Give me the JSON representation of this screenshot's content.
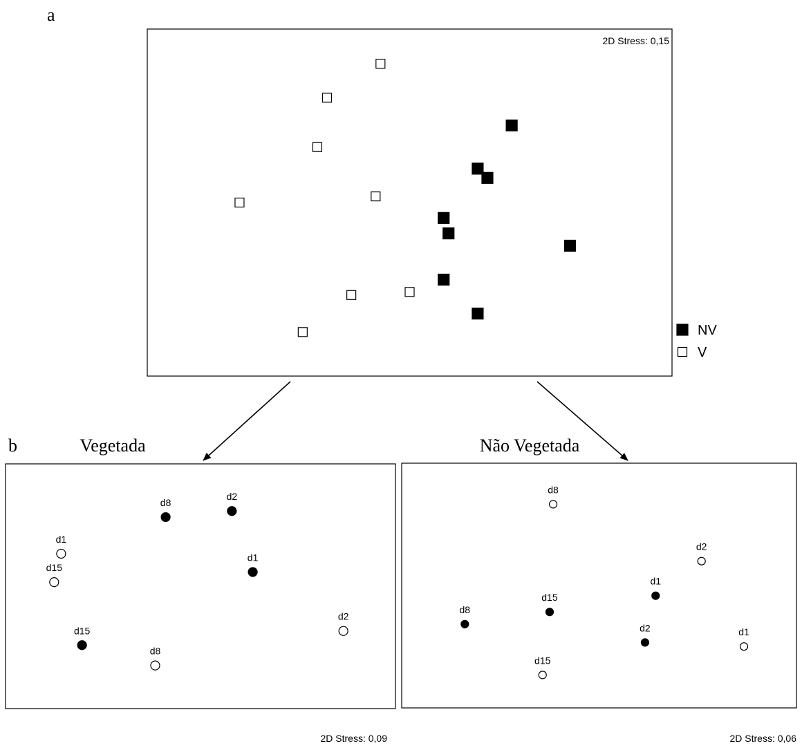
{
  "panel_labels": {
    "a": "a",
    "b": "b"
  },
  "chart_data": [
    {
      "type": "scatter",
      "panel": "a",
      "title": "",
      "stress": "2D Stress: 0,15",
      "legend_position": "right-bottom-outside",
      "legend": [
        {
          "label": "NV",
          "marker": "filled-square"
        },
        {
          "label": "V",
          "marker": "open-square"
        }
      ],
      "series": [
        {
          "name": "NV",
          "marker": "filled-square",
          "points": [
            {
              "x": 0.71,
              "y": 0.75
            },
            {
              "x": 0.64,
              "y": 0.61
            },
            {
              "x": 0.66,
              "y": 0.58
            },
            {
              "x": 0.57,
              "y": 0.45
            },
            {
              "x": 0.58,
              "y": 0.4
            },
            {
              "x": 0.83,
              "y": 0.36
            },
            {
              "x": 0.57,
              "y": 0.25
            },
            {
              "x": 0.64,
              "y": 0.14
            }
          ]
        },
        {
          "name": "V",
          "marker": "open-square",
          "points": [
            {
              "x": 0.44,
              "y": 0.95
            },
            {
              "x": 0.33,
              "y": 0.84
            },
            {
              "x": 0.31,
              "y": 0.68
            },
            {
              "x": 0.43,
              "y": 0.52
            },
            {
              "x": 0.15,
              "y": 0.5
            },
            {
              "x": 0.38,
              "y": 0.2
            },
            {
              "x": 0.5,
              "y": 0.21
            },
            {
              "x": 0.28,
              "y": 0.08
            }
          ]
        }
      ]
    },
    {
      "type": "scatter",
      "panel": "b-left",
      "title": "Vegetada",
      "stress": "2D Stress: 0,09",
      "series": [
        {
          "name": "",
          "marker": "filled-circle",
          "points": [
            {
              "x": 0.4,
              "y": 0.84,
              "label": "d8"
            },
            {
              "x": 0.59,
              "y": 0.87,
              "label": "d2"
            },
            {
              "x": 0.65,
              "y": 0.57,
              "label": "d1"
            },
            {
              "x": 0.16,
              "y": 0.21,
              "label": "d15"
            }
          ]
        },
        {
          "name": "",
          "marker": "open-circle",
          "points": [
            {
              "x": 0.1,
              "y": 0.66,
              "label": "d1"
            },
            {
              "x": 0.08,
              "y": 0.52,
              "label": "d15"
            },
            {
              "x": 0.91,
              "y": 0.28,
              "label": "d2"
            },
            {
              "x": 0.37,
              "y": 0.11,
              "label": "d8"
            }
          ]
        }
      ]
    },
    {
      "type": "scatter",
      "panel": "b-right",
      "title": "Não Vegetada",
      "stress": "2D Stress: 0,06",
      "series": [
        {
          "name": "",
          "marker": "filled-circle",
          "points": [
            {
              "x": 0.12,
              "y": 0.31,
              "label": "d8"
            },
            {
              "x": 0.36,
              "y": 0.37,
              "label": "d15"
            },
            {
              "x": 0.66,
              "y": 0.45,
              "label": "d1"
            },
            {
              "x": 0.63,
              "y": 0.22,
              "label": "d2"
            }
          ]
        },
        {
          "name": "",
          "marker": "open-circle",
          "points": [
            {
              "x": 0.37,
              "y": 0.9,
              "label": "d8"
            },
            {
              "x": 0.79,
              "y": 0.62,
              "label": "d2"
            },
            {
              "x": 0.91,
              "y": 0.2,
              "label": "d1"
            },
            {
              "x": 0.34,
              "y": 0.06,
              "label": "d15"
            }
          ]
        }
      ]
    }
  ]
}
